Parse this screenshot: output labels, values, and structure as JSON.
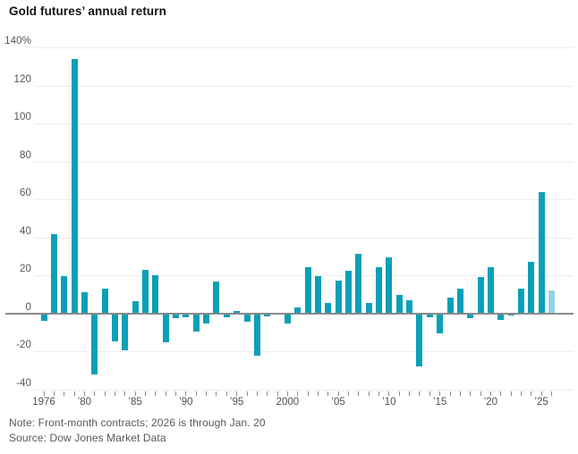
{
  "title": "Gold futures’ annual return",
  "note": "Note: Front-month contracts; 2026 is through Jan. 20",
  "source": "Source: Dow Jones Market Data",
  "colors": {
    "bar": "#0aa0b8",
    "bar_partial": "#94d3e3",
    "zero_line": "#8a8a8a",
    "gridline": "#ececec",
    "tick": "#8c8c8c",
    "axis_text": "#555555",
    "note_text": "#595959",
    "title_text": "#141414"
  },
  "chart_data": {
    "type": "bar",
    "title": "Gold futures’ annual return",
    "unit": "%",
    "ylim": [
      -40,
      140
    ],
    "ytick_step": 20,
    "grid": true,
    "ytick_labels": [
      "140%",
      "120",
      "100",
      "80",
      "60",
      "40",
      "20",
      "0",
      "-20",
      "-40"
    ],
    "years": [
      1976,
      1977,
      1978,
      1979,
      1980,
      1981,
      1982,
      1983,
      1984,
      1985,
      1986,
      1987,
      1988,
      1989,
      1990,
      1991,
      1992,
      1993,
      1994,
      1995,
      1996,
      1997,
      1998,
      1999,
      2000,
      2001,
      2002,
      2003,
      2004,
      2005,
      2006,
      2007,
      2008,
      2009,
      2010,
      2011,
      2012,
      2013,
      2014,
      2015,
      2016,
      2017,
      2018,
      2019,
      2020,
      2021,
      2022,
      2023,
      2024,
      2025,
      2026
    ],
    "values": [
      -4,
      42,
      19.5,
      134,
      11,
      -32,
      13,
      -14.5,
      -19.5,
      6.5,
      23,
      20,
      -15,
      -2.5,
      -2,
      -9.5,
      -5.5,
      17,
      -2,
      1.5,
      -4.5,
      -22,
      -1.5,
      0.5,
      -5.5,
      3,
      24.5,
      19.5,
      5.5,
      17.5,
      22.5,
      31.5,
      5.5,
      24.5,
      29.5,
      10,
      7,
      -28,
      -2,
      -10.5,
      8.5,
      13,
      -2.5,
      19,
      24.5,
      -3.5,
      -1,
      13,
      27,
      64,
      12
    ],
    "partial_year": 2026,
    "partial_note": "2026 is through Jan. 20",
    "xtick_labels": [
      {
        "index": 0,
        "label": "1976"
      },
      {
        "index": 4,
        "label": "’80"
      },
      {
        "index": 9,
        "label": "’85"
      },
      {
        "index": 14,
        "label": "’90"
      },
      {
        "index": 19,
        "label": "’95"
      },
      {
        "index": 24,
        "label": "2000"
      },
      {
        "index": 29,
        "label": "’05"
      },
      {
        "index": 34,
        "label": "’10"
      },
      {
        "index": 39,
        "label": "’15"
      },
      {
        "index": 44,
        "label": "’20"
      },
      {
        "index": 49,
        "label": "’25"
      }
    ]
  }
}
